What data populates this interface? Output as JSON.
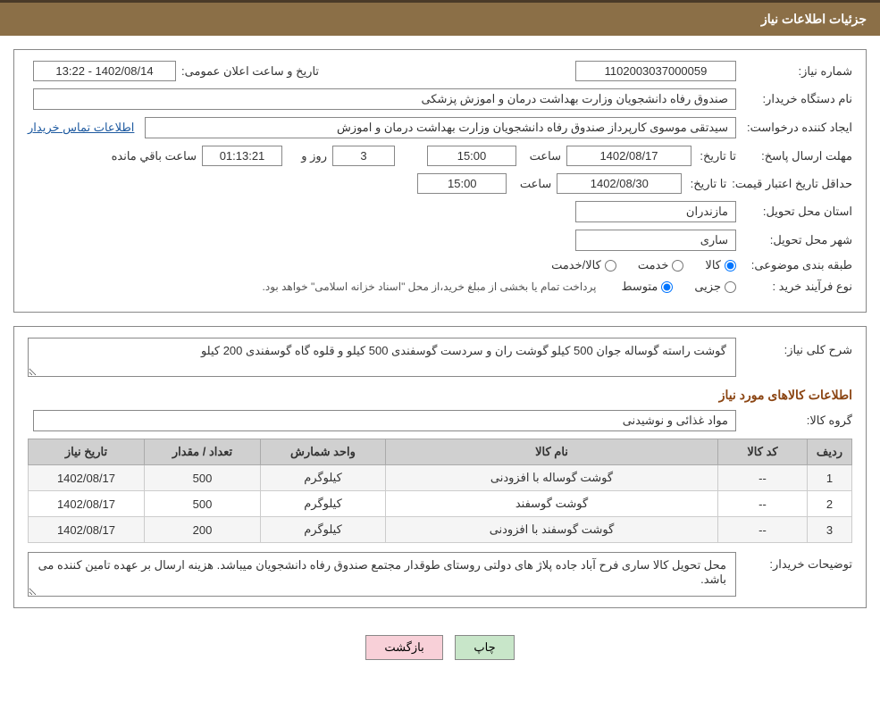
{
  "header": {
    "title": "جزئیات اطلاعات نیاز"
  },
  "fields": {
    "need_number": {
      "label": "شماره نیاز:",
      "value": "1102003037000059"
    },
    "announce_datetime": {
      "label": "تاریخ و ساعت اعلان عمومی:",
      "value": "1402/08/14 - 13:22"
    },
    "buyer_org": {
      "label": "نام دستگاه خریدار:",
      "value": "صندوق رفاه دانشجویان وزارت بهداشت  درمان و اموزش پزشکی"
    },
    "requester": {
      "label": "ایجاد کننده درخواست:",
      "value": "سیدتقی موسوی کارپرداز صندوق رفاه دانشجویان وزارت بهداشت  درمان و اموزش"
    },
    "contact_link": "اطلاعات تماس خریدار",
    "reply_deadline": {
      "label": "مهلت ارسال پاسخ:",
      "sub_date": "تا تاریخ:",
      "date": "1402/08/17",
      "sub_time": "ساعت",
      "time": "15:00"
    },
    "days_left": {
      "value": "3",
      "label": "روز و"
    },
    "time_left": {
      "value": "01:13:21",
      "label": "ساعت باقي مانده"
    },
    "price_validity": {
      "label": "حداقل تاریخ اعتبار قیمت:",
      "sub_date": "تا تاریخ:",
      "date": "1402/08/30",
      "sub_time": "ساعت",
      "time": "15:00"
    },
    "delivery_province": {
      "label": "استان محل تحویل:",
      "value": "مازندران"
    },
    "delivery_city": {
      "label": "شهر محل تحویل:",
      "value": "ساری"
    },
    "category": {
      "label": "طبقه بندی موضوعی:",
      "options": [
        "کالا",
        "خدمت",
        "کالا/خدمت"
      ],
      "selected": 0
    },
    "process_type": {
      "label": "نوع فرآیند خرید :",
      "options": [
        "جزیی",
        "متوسط"
      ],
      "selected": 1
    },
    "process_note": "پرداخت تمام یا بخشی از مبلغ خرید،از محل \"اسناد خزانه اسلامی\" خواهد بود."
  },
  "need_desc": {
    "label": "شرح کلی نیاز:",
    "value": "گوشت راسته گوساله جوان 500 کیلو گوشت ران و سردست گوسفندی 500 کیلو و قلوه گاه گوسفندی 200 کیلو"
  },
  "items_section": {
    "title": "اطلاعات کالاهای مورد نیاز"
  },
  "goods_group": {
    "label": "گروه کالا:",
    "value": "مواد غذائی و نوشیدنی"
  },
  "table": {
    "headers": [
      "ردیف",
      "کد کالا",
      "نام کالا",
      "واحد شمارش",
      "تعداد / مقدار",
      "تاریخ نیاز"
    ],
    "rows": [
      [
        "1",
        "--",
        "گوشت گوساله با افزودنی",
        "کیلوگرم",
        "500",
        "1402/08/17"
      ],
      [
        "2",
        "--",
        "گوشت گوسفند",
        "کیلوگرم",
        "500",
        "1402/08/17"
      ],
      [
        "3",
        "--",
        "گوشت گوسفند با افزودنی",
        "کیلوگرم",
        "200",
        "1402/08/17"
      ]
    ]
  },
  "buyer_notes": {
    "label": "توضیحات خریدار:",
    "value": "محل تحویل کالا ساری  فرح آباد جاده پلاژ های دولتی روستای طوقدار مجتمع صندوق رفاه دانشجویان میباشد. هزینه ارسال بر عهده تامین کننده می باشد."
  },
  "buttons": {
    "print": "چاپ",
    "back": "بازگشت"
  },
  "colors": {
    "header_bg": "#8b6f47",
    "header_border": "#4a3a28",
    "box_border": "#888888",
    "table_header_bg": "#d0d0d0",
    "section_title": "#8b4513",
    "link": "#1e5aa0",
    "btn_print_bg": "#c8e6c9",
    "btn_back_bg": "#f8d0d8"
  }
}
